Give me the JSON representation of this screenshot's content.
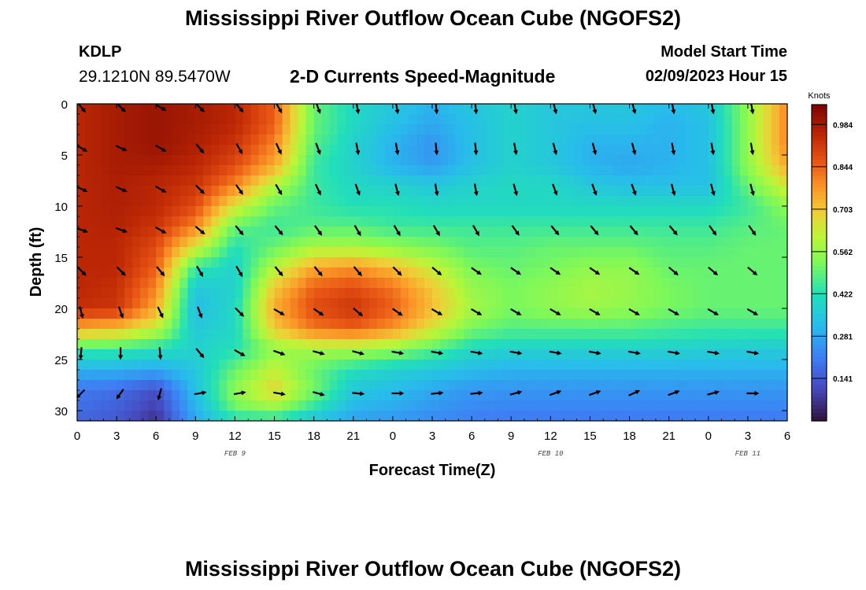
{
  "header": {
    "title": "Mississippi River Outflow Ocean Cube (NGOFS2)",
    "station": "KDLP",
    "coordinates": "29.1210N  89.5470W",
    "plot_title": "2-D Currents Speed-Magnitude",
    "model_start_label": "Model Start Time",
    "model_start_value": "02/09/2023 Hour 15"
  },
  "footer": {
    "title": "Mississippi River Outflow Ocean Cube (NGOFS2)"
  },
  "colors": {
    "low": "#30123b",
    "mid": "#a4fc3c",
    "high": "#7a0403",
    "arrow": "#000000"
  },
  "chart_data": {
    "type": "heatmap",
    "title": "2-D Currents Speed-Magnitude",
    "xlabel": "Forecast Time(Z)",
    "ylabel": "Depth (ft)",
    "x_tick_labels": [
      "0",
      "3",
      "6",
      "9",
      "12",
      "15",
      "18",
      "21",
      "0",
      "3",
      "6",
      "9",
      "12",
      "15",
      "18",
      "21",
      "0",
      "3",
      "6"
    ],
    "x_range_hours": [
      0,
      54
    ],
    "date_labels": [
      {
        "text": "FEB 9",
        "hour": 12
      },
      {
        "text": "FEB 10",
        "hour": 36
      },
      {
        "text": "FEB 11",
        "hour": 51
      }
    ],
    "y_ticks": [
      0,
      5,
      10,
      15,
      20,
      25,
      30
    ],
    "y_range": [
      0,
      31
    ],
    "colorbar": {
      "unit": "Knots",
      "ticks": [
        "0.984",
        "0.844",
        "0.703",
        "0.562",
        "0.422",
        "0.281",
        "0.141"
      ],
      "range": [
        0.0,
        1.05
      ]
    },
    "grid_hours": [
      0,
      3,
      6,
      9,
      12,
      15,
      18,
      21,
      24,
      27,
      30,
      33,
      36,
      39,
      42,
      45,
      48,
      51,
      54
    ],
    "grid_depths": [
      0,
      2,
      4,
      6,
      8,
      10,
      12,
      14,
      16,
      18,
      20,
      22,
      24,
      26,
      28,
      30,
      31
    ],
    "speed_knots": [
      [
        0.95,
        0.98,
        1.0,
        0.98,
        0.95,
        0.85,
        0.5,
        0.4,
        0.35,
        0.3,
        0.35,
        0.38,
        0.35,
        0.35,
        0.35,
        0.32,
        0.35,
        0.55,
        0.8
      ],
      [
        0.95,
        0.98,
        1.0,
        0.98,
        0.95,
        0.85,
        0.5,
        0.4,
        0.33,
        0.28,
        0.33,
        0.38,
        0.35,
        0.33,
        0.33,
        0.3,
        0.33,
        0.55,
        0.8
      ],
      [
        0.95,
        0.98,
        1.0,
        0.97,
        0.92,
        0.8,
        0.48,
        0.38,
        0.3,
        0.25,
        0.33,
        0.38,
        0.35,
        0.3,
        0.3,
        0.3,
        0.33,
        0.55,
        0.8
      ],
      [
        0.95,
        0.98,
        0.98,
        0.95,
        0.88,
        0.75,
        0.45,
        0.38,
        0.3,
        0.26,
        0.33,
        0.38,
        0.35,
        0.3,
        0.28,
        0.3,
        0.33,
        0.55,
        0.75
      ],
      [
        0.95,
        0.97,
        0.95,
        0.92,
        0.8,
        0.6,
        0.45,
        0.4,
        0.38,
        0.35,
        0.38,
        0.4,
        0.4,
        0.35,
        0.33,
        0.33,
        0.33,
        0.5,
        0.65
      ],
      [
        0.95,
        0.97,
        0.95,
        0.88,
        0.65,
        0.5,
        0.45,
        0.42,
        0.42,
        0.4,
        0.4,
        0.4,
        0.4,
        0.4,
        0.4,
        0.4,
        0.4,
        0.45,
        0.55
      ],
      [
        0.95,
        0.96,
        0.92,
        0.8,
        0.5,
        0.45,
        0.48,
        0.48,
        0.45,
        0.45,
        0.45,
        0.45,
        0.45,
        0.45,
        0.45,
        0.45,
        0.45,
        0.48,
        0.5
      ],
      [
        0.95,
        0.95,
        0.88,
        0.65,
        0.42,
        0.5,
        0.58,
        0.58,
        0.55,
        0.52,
        0.48,
        0.48,
        0.5,
        0.5,
        0.5,
        0.48,
        0.48,
        0.5,
        0.5
      ],
      [
        0.95,
        0.95,
        0.85,
        0.45,
        0.38,
        0.6,
        0.75,
        0.78,
        0.72,
        0.62,
        0.52,
        0.5,
        0.52,
        0.55,
        0.55,
        0.5,
        0.5,
        0.5,
        0.5
      ],
      [
        0.95,
        0.93,
        0.8,
        0.35,
        0.38,
        0.7,
        0.85,
        0.88,
        0.82,
        0.7,
        0.56,
        0.52,
        0.55,
        0.58,
        0.56,
        0.52,
        0.5,
        0.5,
        0.5
      ],
      [
        0.93,
        0.92,
        0.75,
        0.32,
        0.4,
        0.75,
        0.88,
        0.92,
        0.85,
        0.72,
        0.58,
        0.52,
        0.55,
        0.57,
        0.55,
        0.52,
        0.5,
        0.5,
        0.5
      ],
      [
        0.75,
        0.72,
        0.62,
        0.35,
        0.4,
        0.7,
        0.82,
        0.85,
        0.78,
        0.65,
        0.52,
        0.48,
        0.48,
        0.48,
        0.48,
        0.46,
        0.45,
        0.45,
        0.45
      ],
      [
        0.45,
        0.45,
        0.42,
        0.38,
        0.42,
        0.55,
        0.58,
        0.58,
        0.55,
        0.48,
        0.4,
        0.38,
        0.38,
        0.38,
        0.38,
        0.38,
        0.37,
        0.36,
        0.36
      ],
      [
        0.3,
        0.3,
        0.28,
        0.35,
        0.5,
        0.62,
        0.5,
        0.42,
        0.38,
        0.35,
        0.32,
        0.3,
        0.3,
        0.3,
        0.3,
        0.3,
        0.3,
        0.3,
        0.3
      ],
      [
        0.2,
        0.18,
        0.12,
        0.33,
        0.55,
        0.68,
        0.52,
        0.35,
        0.32,
        0.28,
        0.25,
        0.25,
        0.25,
        0.25,
        0.25,
        0.25,
        0.25,
        0.25,
        0.25
      ],
      [
        0.18,
        0.15,
        0.08,
        0.3,
        0.5,
        0.55,
        0.42,
        0.3,
        0.28,
        0.25,
        0.23,
        0.22,
        0.22,
        0.22,
        0.22,
        0.22,
        0.22,
        0.22,
        0.22
      ],
      [
        0.16,
        0.14,
        0.06,
        0.28,
        0.4,
        0.4,
        0.32,
        0.27,
        0.25,
        0.23,
        0.21,
        0.2,
        0.2,
        0.2,
        0.2,
        0.2,
        0.2,
        0.2,
        0.2
      ]
    ],
    "vector_hours": [
      0,
      3,
      6,
      9,
      12,
      15,
      18,
      21,
      24,
      27,
      30,
      33,
      36,
      39,
      42,
      45,
      48,
      51
    ],
    "vector_depths": [
      0,
      4,
      8,
      12,
      16,
      20,
      24,
      28
    ],
    "vector_direction_deg": [
      [
        140,
        135,
        120,
        135,
        140,
        150,
        160,
        170,
        170,
        175,
        175,
        170,
        165,
        165,
        165,
        170,
        170,
        170
      ],
      [
        120,
        115,
        120,
        140,
        150,
        155,
        160,
        170,
        170,
        175,
        175,
        170,
        165,
        165,
        165,
        170,
        170,
        170
      ],
      [
        115,
        115,
        120,
        135,
        145,
        150,
        155,
        160,
        165,
        170,
        170,
        165,
        160,
        160,
        160,
        165,
        165,
        165
      ],
      [
        110,
        110,
        120,
        130,
        140,
        140,
        145,
        150,
        150,
        150,
        150,
        145,
        140,
        140,
        140,
        140,
        145,
        145
      ],
      [
        135,
        135,
        140,
        150,
        150,
        140,
        140,
        140,
        135,
        130,
        125,
        125,
        125,
        125,
        125,
        130,
        130,
        130
      ],
      [
        165,
        160,
        155,
        160,
        135,
        120,
        125,
        130,
        125,
        120,
        120,
        120,
        120,
        120,
        120,
        120,
        120,
        120
      ],
      [
        185,
        180,
        175,
        140,
        120,
        110,
        105,
        105,
        100,
        100,
        100,
        100,
        100,
        100,
        100,
        100,
        100,
        100
      ],
      [
        225,
        215,
        195,
        80,
        80,
        100,
        105,
        95,
        90,
        85,
        85,
        75,
        70,
        70,
        65,
        70,
        75,
        90
      ]
    ]
  }
}
